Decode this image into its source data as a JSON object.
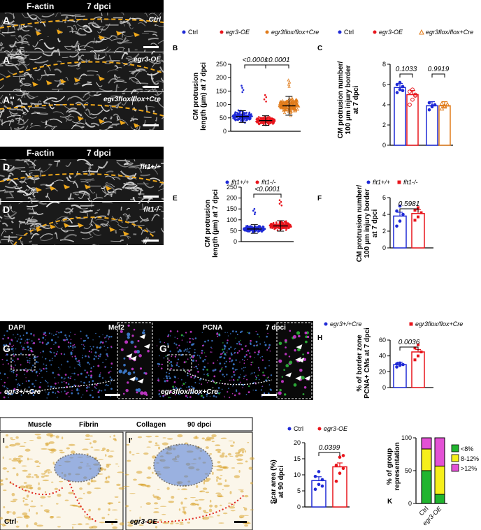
{
  "panels": {
    "A": {
      "header_left": "F-actin",
      "header_right": "7 dpci",
      "letters": [
        "A",
        "A'",
        "A''"
      ],
      "labels": [
        "Ctrl",
        "egr3-OE",
        "egr3flox/flox+Cre"
      ]
    },
    "D": {
      "header_left": "F-actin",
      "header_right": "7 dpci",
      "letters": [
        "D",
        "D'"
      ],
      "labels": [
        "flt1+/+",
        "flt1-/-"
      ]
    },
    "G": {
      "channels": [
        "DAPI",
        "Mef2",
        "PCNA",
        "7 dpci"
      ],
      "letters": [
        "G",
        "G'"
      ],
      "labels": [
        "egr3+/+Cre",
        "egr3flox/flox+Cre"
      ]
    },
    "I": {
      "stains": [
        "Muscle",
        "Fibrin",
        "Collagen",
        "90 dpci"
      ],
      "letters": [
        "I",
        "I'"
      ],
      "labels": [
        "Ctrl",
        "egr3-OE"
      ]
    }
  },
  "colors": {
    "ctrl": "#1f2ad6",
    "red": "#e8151c",
    "orange": "#e07b1a",
    "dapi": "#3f7fd6",
    "mef2": "#cc38d0",
    "pcna": "#2fb63a",
    "collagen": "#4b7ad8",
    "fibrin": "#e0241c",
    "muscle": "#d9a22a",
    "green": "#21b52f",
    "yellow": "#f6ef1a",
    "magenta": "#e351d5",
    "dash": "#f0a81a"
  },
  "chart_data": [
    {
      "id": "B",
      "type": "scatter",
      "legend": [
        "Ctrl",
        "egr3-OE",
        "egr3flox/flox+Cre"
      ],
      "ylabel": "CM protrusion length (μm) at 7 dpci",
      "ylim": [
        0,
        250
      ],
      "yticks": [
        0,
        50,
        100,
        150,
        200,
        250
      ],
      "series": [
        {
          "name": "Ctrl",
          "mean": 55,
          "sd": 22,
          "min": 10,
          "max": 170
        },
        {
          "name": "egr3-OE",
          "mean": 40,
          "sd": 18,
          "min": 8,
          "max": 135
        },
        {
          "name": "egr3flox/flox+Cre",
          "mean": 95,
          "sd": 35,
          "min": 20,
          "max": 190
        }
      ],
      "annotations": [
        "<0.0001",
        "<0.0001"
      ]
    },
    {
      "id": "C",
      "type": "bar",
      "legend": [
        "Ctrl",
        "egr3-OE",
        "egr3flox/flox+Cre"
      ],
      "ylabel": "CM protrusion number/ 100 μm injury border at 7 dpci",
      "ylim": [
        0,
        8
      ],
      "yticks": [
        0,
        2,
        4,
        6,
        8
      ],
      "series": [
        {
          "name": "Ctrl",
          "mean": 5.7,
          "points": [
            5.2,
            5.5,
            5.8,
            6.0,
            6.2,
            5.4
          ]
        },
        {
          "name": "egr3-OE",
          "mean": 5.0,
          "points": [
            4.0,
            4.5,
            5.0,
            5.3,
            5.5,
            4.9
          ]
        },
        {
          "name": "Ctrl",
          "mean": 3.9,
          "points": [
            3.5,
            3.8,
            4.0,
            4.2,
            3.9
          ]
        },
        {
          "name": "egr3flox/flox+Cre",
          "mean": 3.9,
          "points": [
            3.6,
            3.8,
            4.0,
            4.1,
            3.9
          ]
        }
      ],
      "annotations": [
        "0.1033",
        "0.9919"
      ]
    },
    {
      "id": "E",
      "type": "scatter",
      "legend": [
        "flt1+/+",
        "flt1-/-"
      ],
      "ylabel": "CM protrusion length (μm) at 7 dpci",
      "ylim": [
        0,
        250
      ],
      "yticks": [
        0,
        50,
        100,
        150,
        200,
        250
      ],
      "series": [
        {
          "name": "flt1+/+",
          "mean": 58,
          "sd": 20,
          "min": 10,
          "max": 150
        },
        {
          "name": "flt1-/-",
          "mean": 72,
          "sd": 24,
          "min": 15,
          "max": 190
        }
      ],
      "annotations": [
        "<0.0001"
      ]
    },
    {
      "id": "F",
      "type": "bar",
      "legend": [
        "flt1+/+",
        "flt1-/-"
      ],
      "ylabel": "CM protrusion number/ 100 μm injury border at 7 dpci",
      "ylim": [
        0,
        6
      ],
      "yticks": [
        0,
        2,
        4,
        6
      ],
      "series": [
        {
          "name": "flt1+/+",
          "mean": 3.8,
          "points": [
            2.6,
            3.2,
            4.0,
            4.4,
            5.0
          ]
        },
        {
          "name": "flt1-/-",
          "mean": 4.1,
          "points": [
            3.3,
            3.7,
            4.2,
            4.5,
            4.8
          ]
        }
      ],
      "annotations": [
        "0.5981"
      ]
    },
    {
      "id": "H",
      "type": "bar",
      "legend": [
        "egr3+/+Cre",
        "egr3flox/flox+Cre"
      ],
      "ylabel": "% of border zone PCNA+ CMs at 7 dpci",
      "ylim": [
        0,
        60
      ],
      "yticks": [
        0,
        20,
        40,
        60
      ],
      "series": [
        {
          "name": "egr3+/+Cre",
          "mean": 29,
          "points": [
            26,
            28,
            29,
            30,
            31
          ]
        },
        {
          "name": "egr3flox/flox+Cre",
          "mean": 45,
          "points": [
            35,
            40,
            45,
            50,
            54
          ]
        }
      ],
      "annotations": [
        "0.0036"
      ]
    },
    {
      "id": "J",
      "type": "bar",
      "legend": [
        "Ctrl",
        "egr3-OE"
      ],
      "ylabel": "Scar area (%) at 90 dpci",
      "ylim": [
        0,
        20
      ],
      "yticks": [
        0,
        5,
        10,
        15,
        20
      ],
      "series": [
        {
          "name": "Ctrl",
          "mean": 8.2,
          "points": [
            5.5,
            7.0,
            8.5,
            9.5,
            11.0,
            6.5
          ]
        },
        {
          "name": "egr3-OE",
          "mean": 12.5,
          "points": [
            8.0,
            10.5,
            12.0,
            13.0,
            15.5,
            16.0
          ]
        }
      ],
      "annotations": [
        "0.0399"
      ]
    },
    {
      "id": "K",
      "type": "bar",
      "categories": [
        "Ctrl",
        "egr3-OE"
      ],
      "ylabel": "% of group representation",
      "ylim": [
        0,
        100
      ],
      "yticks": [
        0,
        50,
        100
      ],
      "series": [
        {
          "name": "<8%",
          "values": [
            50,
            14
          ]
        },
        {
          "name": "8-12%",
          "values": [
            33,
            43
          ]
        },
        {
          "name": ">12%",
          "values": [
            17,
            43
          ]
        }
      ]
    }
  ]
}
